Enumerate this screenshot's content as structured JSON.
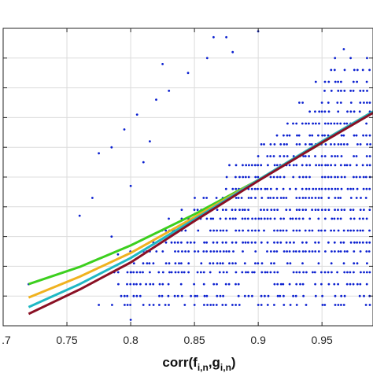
{
  "chart_data": {
    "type": "scatter",
    "title": "",
    "xlabel": {
      "parts": [
        {
          "text": "corr(f",
          "sub": false
        },
        {
          "text": "i,n",
          "sub": true
        },
        {
          "text": ",g",
          "sub": false
        },
        {
          "text": "i,n",
          "sub": true
        },
        {
          "text": ")",
          "sub": false
        }
      ]
    },
    "ylabel": "",
    "xlim": [
      0.7,
      0.99
    ],
    "ylim": [
      0,
      1
    ],
    "x_ticks": [
      0.7,
      0.75,
      0.8,
      0.85,
      0.9,
      0.95
    ],
    "x_tick_labels": [
      ".7",
      "0.75",
      "0.8",
      "0.85",
      "0.9",
      "0.95"
    ],
    "y_ticks": [
      0.1,
      0.2,
      0.3,
      0.4,
      0.5,
      0.6,
      0.7,
      0.8,
      0.9
    ],
    "grid": true,
    "legend": "none",
    "scatter": {
      "color": "#0a1fd0",
      "y_levels": [
        0.07,
        0.1,
        0.14,
        0.18,
        0.21,
        0.25,
        0.28,
        0.32,
        0.36,
        0.39,
        0.43,
        0.46,
        0.5,
        0.54,
        0.57,
        0.61,
        0.64,
        0.68,
        0.72,
        0.75,
        0.79,
        0.82,
        0.86,
        0.9,
        0.93
      ],
      "level_density": [
        0.45,
        0.5,
        0.55,
        0.6,
        0.62,
        0.66,
        0.68,
        0.7,
        0.72,
        0.73,
        0.74,
        0.75,
        0.75,
        0.75,
        0.74,
        0.72,
        0.7,
        0.67,
        0.63,
        0.58,
        0.52,
        0.45,
        0.38,
        0.3,
        0.22
      ],
      "x_start": [
        0.77,
        0.775,
        0.78,
        0.785,
        0.79,
        0.8,
        0.805,
        0.815,
        0.825,
        0.835,
        0.845,
        0.855,
        0.865,
        0.875,
        0.885,
        0.895,
        0.905,
        0.915,
        0.92,
        0.93,
        0.94,
        0.945,
        0.955,
        0.96,
        0.965
      ],
      "outliers": [
        {
          "x": 0.72,
          "y": 0.14
        },
        {
          "x": 0.775,
          "y": 0.07
        },
        {
          "x": 0.8,
          "y": 0.02
        },
        {
          "x": 0.785,
          "y": 0.3
        },
        {
          "x": 0.79,
          "y": 0.24
        },
        {
          "x": 0.77,
          "y": 0.43
        },
        {
          "x": 0.775,
          "y": 0.58
        },
        {
          "x": 0.785,
          "y": 0.6
        },
        {
          "x": 0.805,
          "y": 0.71
        },
        {
          "x": 0.815,
          "y": 0.62
        },
        {
          "x": 0.825,
          "y": 0.88
        },
        {
          "x": 0.83,
          "y": 0.79
        },
        {
          "x": 0.845,
          "y": 0.85
        },
        {
          "x": 0.865,
          "y": 0.97
        },
        {
          "x": 0.88,
          "y": 0.92
        },
        {
          "x": 0.875,
          "y": 0.97
        },
        {
          "x": 0.9,
          "y": 0.99
        },
        {
          "x": 0.795,
          "y": 0.66
        },
        {
          "x": 0.81,
          "y": 0.55
        },
        {
          "x": 0.8,
          "y": 0.47
        },
        {
          "x": 0.86,
          "y": 0.9
        },
        {
          "x": 0.76,
          "y": 0.37
        },
        {
          "x": 0.8,
          "y": 0.18
        },
        {
          "x": 0.82,
          "y": 0.76
        }
      ]
    },
    "series": [
      {
        "color": "#3ccf1e",
        "x": [
          0.72,
          0.76,
          0.8,
          0.85,
          0.9,
          0.95,
          0.99
        ],
        "y": [
          0.14,
          0.198,
          0.27,
          0.375,
          0.49,
          0.615,
          0.72
        ]
      },
      {
        "color": "#f0b21f",
        "x": [
          0.72,
          0.76,
          0.8,
          0.85,
          0.9,
          0.95,
          0.99
        ],
        "y": [
          0.095,
          0.165,
          0.245,
          0.365,
          0.49,
          0.62,
          0.72
        ]
      },
      {
        "color": "#1fb8c4",
        "x": [
          0.72,
          0.76,
          0.8,
          0.85,
          0.9,
          0.95,
          0.99
        ],
        "y": [
          0.063,
          0.14,
          0.228,
          0.358,
          0.49,
          0.62,
          0.72
        ]
      },
      {
        "color": "#8a1024",
        "x": [
          0.72,
          0.76,
          0.8,
          0.85,
          0.9,
          0.95,
          0.99
        ],
        "y": [
          0.04,
          0.122,
          0.213,
          0.352,
          0.487,
          0.616,
          0.716
        ]
      }
    ]
  }
}
